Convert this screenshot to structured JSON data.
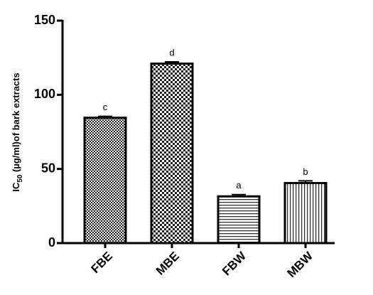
{
  "chart_data": {
    "type": "bar",
    "y_label": [
      "IC",
      "50",
      " (µg/ml)of bark extracts"
    ],
    "categories": [
      "FBE",
      "MBE",
      "FBW",
      "MBW"
    ],
    "values": [
      84.5,
      121,
      31.5,
      40.5
    ],
    "errors": [
      1,
      1.2,
      1.2,
      1.5
    ],
    "annotations": [
      "c",
      "d",
      "a",
      "b"
    ],
    "patterns": [
      "fine-check",
      "check",
      "horizontal",
      "vertical"
    ],
    "color": "#000000",
    "ylim": [
      0,
      150
    ],
    "yticks": [
      0,
      50,
      100,
      150
    ],
    "grid": false
  }
}
